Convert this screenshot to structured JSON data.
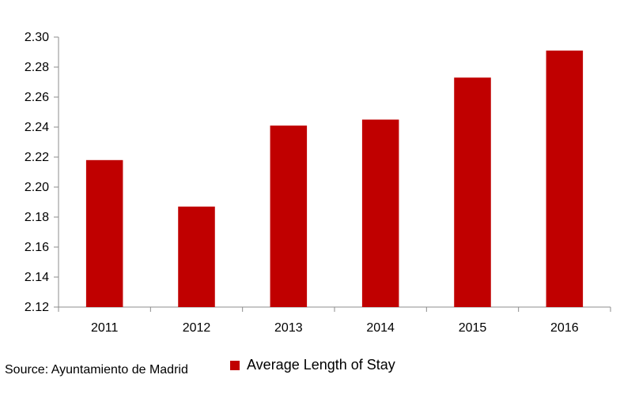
{
  "chart_data": {
    "type": "bar",
    "categories": [
      "2011",
      "2012",
      "2013",
      "2014",
      "2015",
      "2016"
    ],
    "series": [
      {
        "name": "Average Length of Stay",
        "values": [
          2.218,
          2.187,
          2.241,
          2.245,
          2.273,
          2.291
        ],
        "color": "#c00000"
      }
    ],
    "ylim": [
      2.12,
      2.3
    ],
    "yticks": [
      "2.12",
      "2.14",
      "2.16",
      "2.18",
      "2.20",
      "2.22",
      "2.24",
      "2.26",
      "2.28",
      "2.30"
    ],
    "grid": false,
    "legend_position": "bottom",
    "source": "Source: Ayuntamiento de Madrid"
  }
}
